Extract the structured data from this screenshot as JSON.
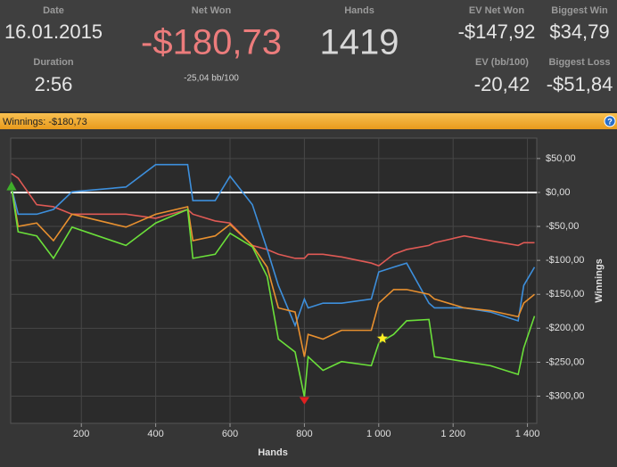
{
  "header": {
    "stats": [
      {
        "label": "Date",
        "value": "16.01.2015"
      },
      {
        "label": "Duration",
        "value": "2:56"
      },
      {
        "label": "Net Won",
        "value": "-$180,73",
        "sub": "-25,04 bb/100"
      },
      {
        "label": "Hands",
        "value": "1419"
      },
      {
        "label": "EV Net Won",
        "value": "-$147,92"
      },
      {
        "label": "EV (bb/100)",
        "value": "-20,42"
      },
      {
        "label": "Biggest Win",
        "value": "$34,79"
      },
      {
        "label": "Biggest Loss",
        "value": "-$51,84"
      }
    ]
  },
  "panel": {
    "title": "Winnings: -$180,73"
  },
  "chart_data": {
    "type": "line",
    "xlabel": "Hands",
    "ylabel": "Winnings",
    "x": [
      12,
      30,
      80,
      125,
      175,
      320,
      400,
      486,
      500,
      560,
      600,
      660,
      700,
      730,
      775,
      800,
      810,
      850,
      900,
      980,
      1000,
      1040,
      1075,
      1135,
      1150,
      1230,
      1300,
      1375,
      1390,
      1419
    ],
    "series": [
      {
        "color": "#e05a55",
        "values": [
          28,
          21,
          -18,
          -21,
          -32,
          -32,
          -38,
          -25,
          -32,
          -42,
          -45,
          -78,
          -84,
          -91,
          -97,
          -97,
          -91,
          -91,
          -95,
          -104,
          -108,
          -91,
          -84,
          -78,
          -74,
          -64,
          -71,
          -78,
          -74,
          -74
        ]
      },
      {
        "color": "#3d8fdc",
        "values": [
          8,
          -32,
          -32,
          -25,
          1,
          8,
          41,
          41,
          -12,
          -12,
          24,
          -18,
          -84,
          -137,
          -196,
          -157,
          -170,
          -163,
          -163,
          -157,
          -117,
          -110,
          -104,
          -163,
          -170,
          -170,
          -176,
          -189,
          -137,
          -110
        ]
      },
      {
        "color": "#e8902f",
        "values": [
          8,
          -50,
          -45,
          -71,
          -32,
          -51,
          -32,
          -21,
          -71,
          -64,
          -47,
          -78,
          -110,
          -170,
          -176,
          -242,
          -209,
          -216,
          -203,
          -203,
          -163,
          -143,
          -143,
          -150,
          -157,
          -170,
          -174,
          -183,
          -163,
          -150
        ]
      },
      {
        "color": "#6be03a",
        "values": [
          8,
          -58,
          -64,
          -97,
          -51,
          -78,
          -45,
          -25,
          -97,
          -91,
          -60,
          -80,
          -124,
          -216,
          -235,
          -301,
          -242,
          -262,
          -249,
          -255,
          -222,
          -209,
          -189,
          -187,
          -242,
          -249,
          -255,
          -268,
          -229,
          -182
        ]
      }
    ],
    "markers": [
      {
        "x": 12,
        "y": 8,
        "color": "#3fae2a",
        "shape": "triangle-up"
      },
      {
        "x": 800,
        "y": -301,
        "color": "#e02020",
        "shape": "triangle-down"
      },
      {
        "x": 1010,
        "y": -215,
        "color": "#ffee22",
        "shape": "star"
      }
    ],
    "zero_line": {
      "value": 0,
      "color": "#ffffff"
    },
    "xlim": [
      10,
      1425
    ],
    "ylim": [
      -340,
      80
    ],
    "xticks": [
      200,
      400,
      600,
      800,
      {
        "value": 1000,
        "label": "1 000"
      },
      {
        "value": 1200,
        "label": "1 200"
      },
      {
        "value": 1400,
        "label": "1 400"
      }
    ],
    "yticks": [
      {
        "value": 50,
        "label": "$50,00"
      },
      {
        "value": 0,
        "label": "$0,00"
      },
      {
        "value": -50,
        "label": "-$50,00"
      },
      {
        "value": -100,
        "label": "-$100,00"
      },
      {
        "value": -150,
        "label": "-$150,00"
      },
      {
        "value": -200,
        "label": "-$200,00"
      },
      {
        "value": -250,
        "label": "-$250,00"
      },
      {
        "value": -300,
        "label": "-$300,00"
      }
    ],
    "grid": true
  }
}
